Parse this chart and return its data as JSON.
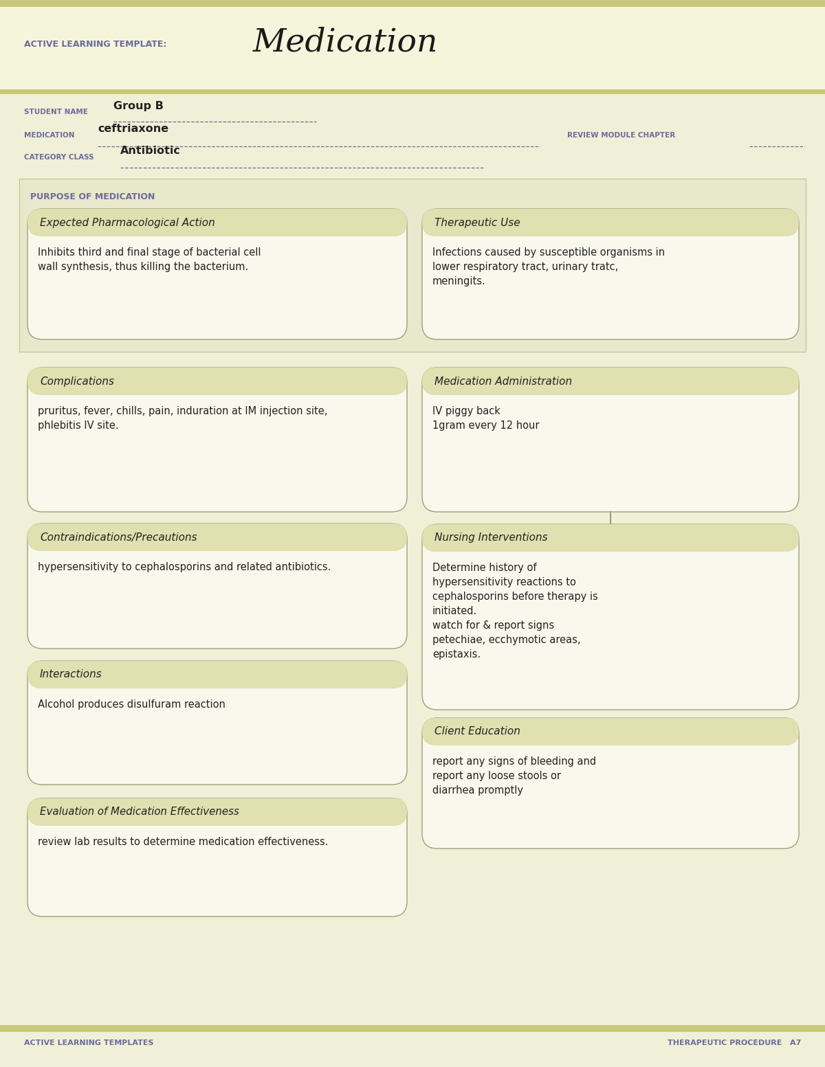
{
  "page_bg": "#f0f0d8",
  "header_bg": "#f5f5dc",
  "olive_bar_color": "#c8c87a",
  "box_bg": "#f8f8ec",
  "box_border": "#a0a078",
  "section_header_bg": "#e0e0b0",
  "purple_text": "#6b6b9b",
  "dark_text": "#222222",
  "title_text": "Medication",
  "template_label": "ACTIVE LEARNING TEMPLATE:",
  "student_name_label": "STUDENT NAME",
  "student_name_value": "Group B",
  "medication_label": "MEDICATION",
  "medication_value": "ceftriaxone",
  "review_label": "REVIEW MODULE CHAPTER",
  "category_label": "CATEGORY CLASS",
  "category_value": "Antibiotic",
  "purpose_label": "PURPOSE OF MEDICATION",
  "box1_title": "Expected Pharmacological Action",
  "box1_content": "Inhibits third and final stage of bacterial cell\nwall synthesis, thus killing the bacterium.",
  "box2_title": "Therapeutic Use",
  "box2_content": "Infections caused by susceptible organisms in\nlower respiratory tract, urinary tratc,\nmeningits.",
  "box3_title": "Complications",
  "box3_content": "pruritus, fever, chills, pain, induration at IM injection site,\nphlebitis IV site.",
  "box4_title": "Medication Administration",
  "box4_content": "IV piggy back\n1gram every 12 hour",
  "box5_title": "Contraindications/Precautions",
  "box5_content": "hypersensitivity to cephalosporins and related antibiotics.",
  "box6_title": "Nursing Interventions",
  "box6_content": "Determine history of\nhypersensitivity reactions to\ncephalosporins before therapy is\ninitiated.\nwatch for & report signs\npetechiae, ecchymotic areas,\nepistaxis.",
  "box7_title": "Interactions",
  "box7_content": "Alcohol produces disulfuram reaction",
  "box8_title": "Client Education",
  "box8_content": "report any signs of bleeding and\nreport any loose stools or\ndiarrhea promptly",
  "box9_title": "Evaluation of Medication Effectiveness",
  "box9_content": "review lab results to determine medication effectiveness.",
  "footer_left": "ACTIVE LEARNING TEMPLATES",
  "footer_right": "THERAPEUTIC PROCEDURE   A7"
}
